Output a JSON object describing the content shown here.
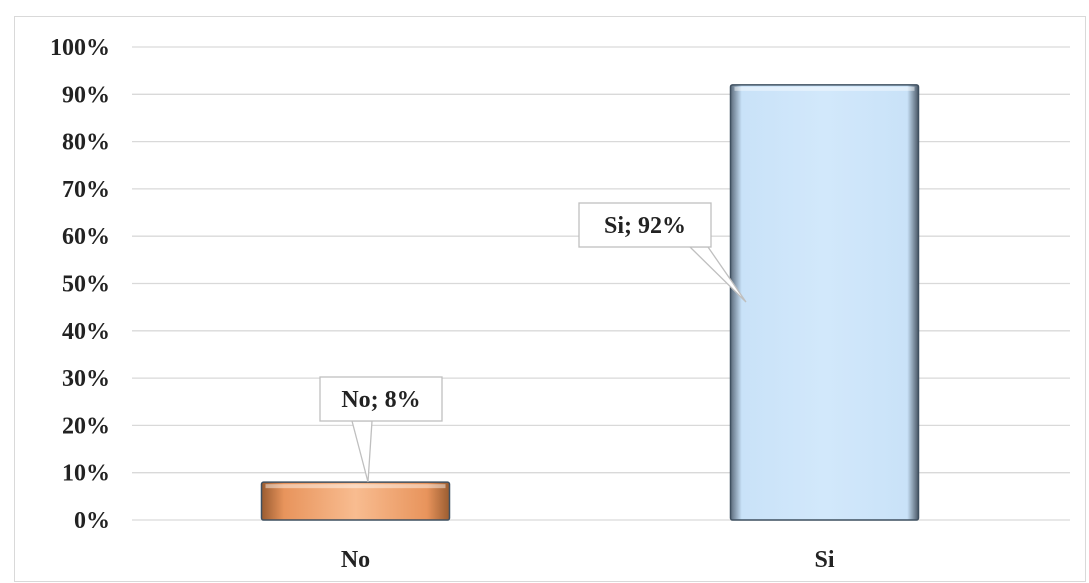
{
  "chart_data": {
    "type": "bar",
    "categories": [
      "No",
      "Si"
    ],
    "values": [
      8,
      92
    ],
    "value_unit": "%",
    "ylim": [
      0,
      100
    ],
    "ytick_step": 10,
    "yticks": [
      "0%",
      "10%",
      "20%",
      "30%",
      "40%",
      "50%",
      "60%",
      "70%",
      "80%",
      "90%",
      "100%"
    ],
    "data_labels": [
      "No; 8%",
      "Si; 92%"
    ],
    "grid": true,
    "legend": "none",
    "title": "",
    "xlabel": "",
    "ylabel": ""
  },
  "colors": {
    "no_bar": "#f0a878",
    "si_bar": "#c9e2f8",
    "grid": "#d9d9d9",
    "bar_edge": "#3f5060"
  }
}
